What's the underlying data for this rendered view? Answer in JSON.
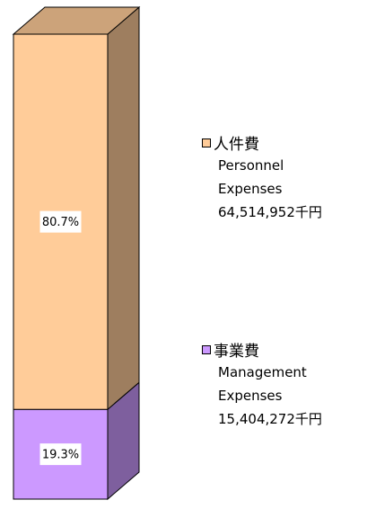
{
  "chart_data": {
    "type": "bar",
    "stacked": true,
    "three_d": true,
    "ylim": [
      0,
      100
    ],
    "series": [
      {
        "name": "事業費",
        "english": "Management Expenses",
        "amount": "15,404,272千円",
        "color": "#cc99ff",
        "values": [
          19.3
        ],
        "value_labels": [
          "19.3%"
        ]
      },
      {
        "name": "人件費",
        "english": "Personnel Expenses",
        "amount": "64,514,952千円",
        "color": "#ffcc99",
        "values": [
          80.7
        ],
        "value_labels": [
          "80.7%"
        ]
      }
    ]
  }
}
